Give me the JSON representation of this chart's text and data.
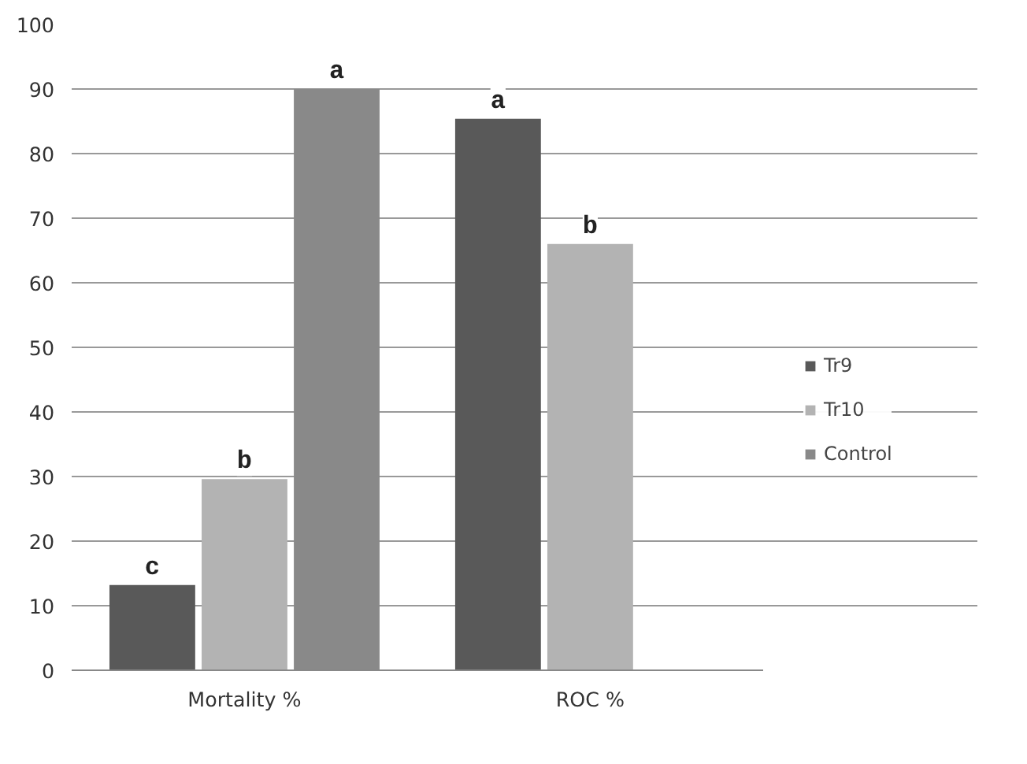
{
  "chart_data": {
    "type": "bar",
    "categories": [
      "Mortality %",
      "ROC %"
    ],
    "series": [
      {
        "name": "Tr9",
        "color": "#595959",
        "values": [
          13.2,
          85.4
        ],
        "value_labels": [
          "c",
          "a"
        ]
      },
      {
        "name": "Tr10",
        "color": "#b3b3b3",
        "values": [
          29.6,
          66
        ],
        "value_labels": [
          "b",
          "b"
        ]
      },
      {
        "name": "Control",
        "color": "#898989",
        "values": [
          90,
          null
        ],
        "value_labels": [
          "a",
          null
        ]
      }
    ],
    "ylim": [
      0,
      100
    ],
    "yticks": [
      0,
      10,
      20,
      30,
      40,
      50,
      60,
      70,
      80,
      90,
      100
    ],
    "grid": "y",
    "legend": "right"
  }
}
